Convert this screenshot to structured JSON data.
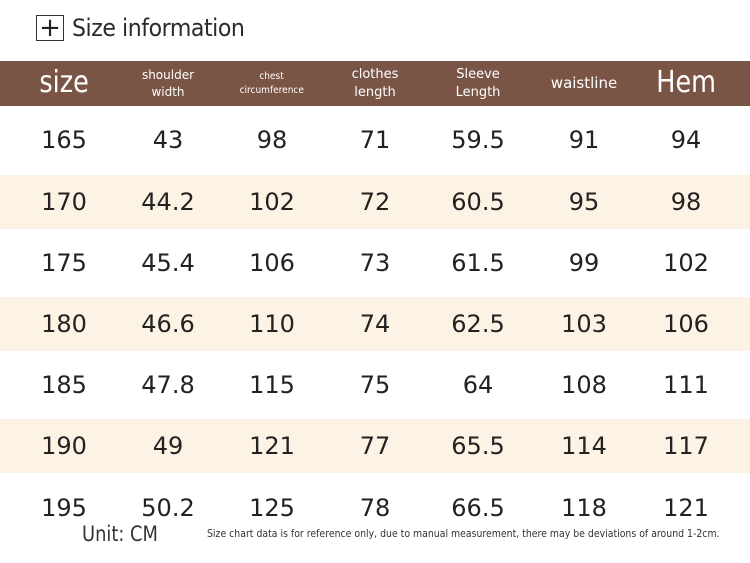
{
  "title": "Size information",
  "headers": [
    {
      "lines": [
        "size"
      ],
      "cls": "h-big"
    },
    {
      "lines": [
        "shoulder",
        "width"
      ],
      "cls": "h-small"
    },
    {
      "lines": [
        "chest",
        "circumference"
      ],
      "cls": "h-tiny"
    },
    {
      "lines": [
        "clothes",
        "length"
      ],
      "cls": "h-mid"
    },
    {
      "lines": [
        "Sleeve",
        "Length"
      ],
      "cls": "h-mid"
    },
    {
      "lines": [
        "waistline"
      ],
      "cls": "h-wl"
    },
    {
      "lines": [
        "Hem"
      ],
      "cls": "h-big"
    }
  ],
  "rows": [
    [
      "165",
      "43",
      "98",
      "71",
      "59.5",
      "91",
      "94"
    ],
    [
      "170",
      "44.2",
      "102",
      "72",
      "60.5",
      "95",
      "98"
    ],
    [
      "175",
      "45.4",
      "106",
      "73",
      "61.5",
      "99",
      "102"
    ],
    [
      "180",
      "46.6",
      "110",
      "74",
      "62.5",
      "103",
      "106"
    ],
    [
      "185",
      "47.8",
      "115",
      "75",
      "64",
      "108",
      "111"
    ],
    [
      "190",
      "49",
      "121",
      "77",
      "65.5",
      "114",
      "117"
    ],
    [
      "195",
      "50.2",
      "125",
      "78",
      "66.5",
      "118",
      "121"
    ]
  ],
  "unit": "Unit: CM",
  "note": "Size chart data is for reference only, due to manual measurement, there may be deviations of around 1-2cm.",
  "colors": {
    "header_bg": "#7a5546",
    "alt_row_bg": "#fdf3e4"
  }
}
